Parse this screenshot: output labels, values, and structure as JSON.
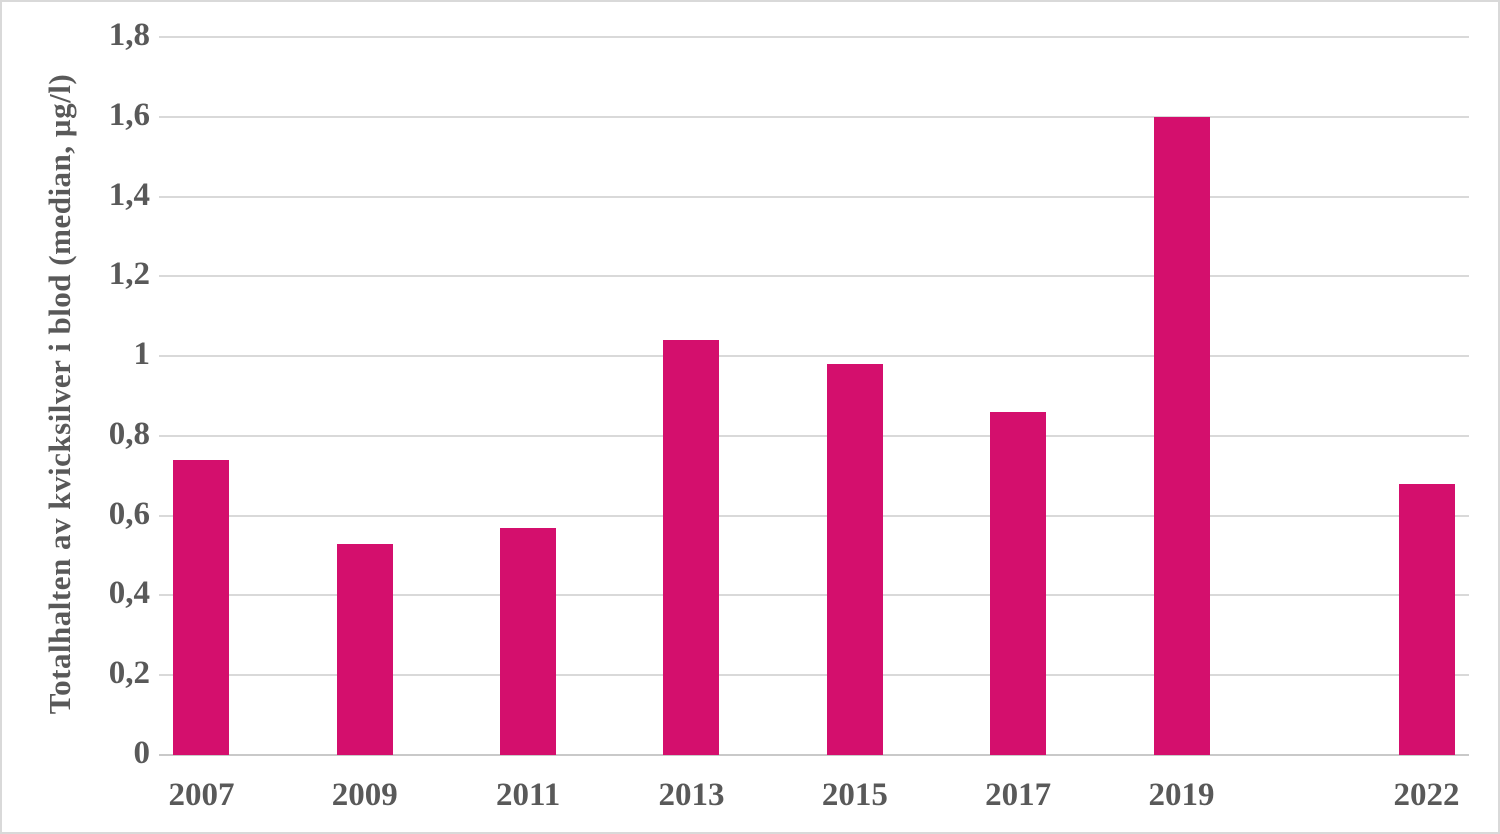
{
  "chart_data": {
    "type": "bar",
    "title": "",
    "xlabel": "",
    "ylabel": "Totalhalten av kvicksilver i blod (median, µg/l)",
    "categories": [
      "2007",
      "2009",
      "2011",
      "2013",
      "2015",
      "2017",
      "2019",
      "2022"
    ],
    "x_years": [
      2007,
      2009,
      2011,
      2013,
      2015,
      2017,
      2019,
      2022
    ],
    "values": [
      0.74,
      0.53,
      0.57,
      1.04,
      0.98,
      0.86,
      1.6,
      0.68
    ],
    "ylim": [
      0,
      1.8
    ],
    "ytick_values": [
      0,
      0.2,
      0.4,
      0.6,
      0.8,
      1.0,
      1.2,
      1.4,
      1.6,
      1.8
    ],
    "ytick_labels": [
      "0",
      "0,2",
      "0,4",
      "0,6",
      "0,8",
      "1",
      "1,2",
      "1,4",
      "1,6",
      "1,8"
    ],
    "x_range": [
      2006.48,
      2022.52
    ],
    "legend_position": "none",
    "grid": "horizontal",
    "bar_color": "#d40f6d",
    "grid_color": "#d9d9d9",
    "axis_line_color": "#c9c9c9",
    "text_color": "#595959"
  }
}
